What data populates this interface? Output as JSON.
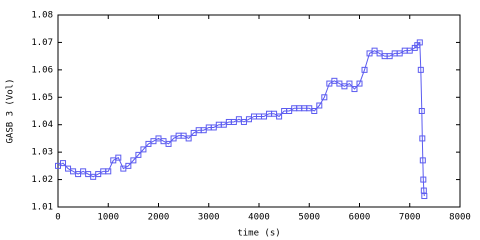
{
  "chart_data": {
    "type": "line",
    "x_label": "time (s)",
    "y_label": "GASB 3 (Vol)",
    "xlim": [
      0,
      8000
    ],
    "xticks": [
      0,
      1000,
      2000,
      3000,
      4000,
      5000,
      6000,
      7000,
      8000
    ],
    "ylim": [
      1.01,
      1.08
    ],
    "yticks": [
      1.01,
      1.02,
      1.03,
      1.04,
      1.05,
      1.06,
      1.07,
      1.08
    ],
    "series": [
      {
        "color": "#5b5bf0",
        "x": [
          0,
          100,
          200,
          300,
          400,
          500,
          600,
          700,
          800,
          900,
          1000,
          1100,
          1200,
          1300,
          1400,
          1500,
          1600,
          1700,
          1800,
          1900,
          2000,
          2100,
          2200,
          2300,
          2400,
          2500,
          2600,
          2700,
          2800,
          2900,
          3000,
          3100,
          3200,
          3300,
          3400,
          3500,
          3600,
          3700,
          3800,
          3900,
          4000,
          4100,
          4200,
          4300,
          4400,
          4500,
          4600,
          4700,
          4800,
          4900,
          5000,
          5100,
          5200,
          5300,
          5400,
          5500,
          5600,
          5700,
          5800,
          5900,
          6000,
          6100,
          6200,
          6300,
          6400,
          6500,
          6600,
          6700,
          6800,
          6900,
          7000,
          7100,
          7150,
          7200,
          7220,
          7240,
          7250,
          7260,
          7270,
          7280,
          7290
        ],
        "values": [
          1.025,
          1.026,
          1.024,
          1.023,
          1.022,
          1.023,
          1.022,
          1.021,
          1.022,
          1.023,
          1.023,
          1.027,
          1.028,
          1.024,
          1.025,
          1.027,
          1.029,
          1.031,
          1.033,
          1.034,
          1.035,
          1.034,
          1.033,
          1.035,
          1.036,
          1.036,
          1.035,
          1.037,
          1.038,
          1.038,
          1.039,
          1.039,
          1.04,
          1.04,
          1.041,
          1.041,
          1.042,
          1.041,
          1.042,
          1.043,
          1.043,
          1.043,
          1.044,
          1.044,
          1.043,
          1.045,
          1.045,
          1.046,
          1.046,
          1.046,
          1.046,
          1.045,
          1.047,
          1.05,
          1.055,
          1.056,
          1.055,
          1.054,
          1.055,
          1.053,
          1.055,
          1.06,
          1.066,
          1.067,
          1.066,
          1.065,
          1.065,
          1.066,
          1.066,
          1.067,
          1.067,
          1.068,
          1.069,
          1.07,
          1.06,
          1.045,
          1.035,
          1.027,
          1.02,
          1.016,
          1.014
        ]
      }
    ]
  }
}
